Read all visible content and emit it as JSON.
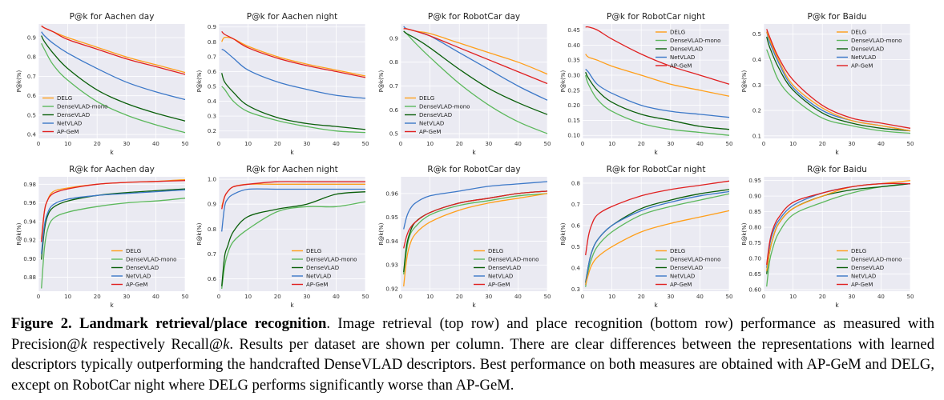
{
  "colors": {
    "DELG": "#ff9f1a",
    "DenseVLAD-mono": "#5cb85c",
    "DenseVLAD": "#0a5f0a",
    "NetVLAD": "#3c78c8",
    "AP-GeM": "#e02020",
    "panel_bg": "#eaeaf2",
    "grid": "#ffffff"
  },
  "caption": {
    "label": "Figure 2.",
    "title": "Landmark retrieval/place recognition",
    "text1": ". Image retrieval (top row) and place recognition (bottom row) performance as measured with Precision@",
    "k1": "k",
    "text2": " respectively Recall@",
    "k2": "k",
    "text3": ". Results per dataset are shown per column. There are clear differences between the representations with learned descriptors typically outperforming the handcrafted DenseVLAD descriptors. Best performance on both measures are obtained with AP-GeM and DELG, except on RobotCar night where DELG performs significantly worse than AP-GeM."
  },
  "chart_data": [
    {
      "type": "line",
      "title": "P@k for Aachen day",
      "xlabel": "k",
      "ylabel": "P@k(%)",
      "xlim": [
        0,
        50
      ],
      "ylim": [
        0.38,
        0.97
      ],
      "xticks": [
        0,
        10,
        20,
        30,
        40,
        50
      ],
      "yticks": [
        0.4,
        0.5,
        0.6,
        0.7,
        0.8,
        0.9
      ],
      "legend": "lower-left",
      "x": [
        1,
        2,
        5,
        10,
        20,
        30,
        40,
        50
      ],
      "series": [
        {
          "name": "DELG",
          "values": [
            0.96,
            0.95,
            0.93,
            0.9,
            0.85,
            0.8,
            0.76,
            0.72
          ]
        },
        {
          "name": "DenseVLAD-mono",
          "values": [
            0.87,
            0.84,
            0.76,
            0.68,
            0.57,
            0.5,
            0.45,
            0.41
          ]
        },
        {
          "name": "DenseVLAD",
          "values": [
            0.91,
            0.88,
            0.82,
            0.74,
            0.63,
            0.56,
            0.51,
            0.47
          ]
        },
        {
          "name": "NetVLAD",
          "values": [
            0.93,
            0.91,
            0.87,
            0.82,
            0.74,
            0.67,
            0.62,
            0.58
          ]
        },
        {
          "name": "AP-GeM",
          "values": [
            0.96,
            0.95,
            0.93,
            0.89,
            0.84,
            0.79,
            0.75,
            0.71
          ]
        }
      ]
    },
    {
      "type": "line",
      "title": "P@k for Aachen night",
      "xlabel": "k",
      "ylabel": "P@k(%)",
      "xlim": [
        0,
        50
      ],
      "ylim": [
        0.15,
        0.92
      ],
      "xticks": [
        0,
        10,
        20,
        30,
        40,
        50
      ],
      "yticks": [
        0.2,
        0.3,
        0.4,
        0.5,
        0.6,
        0.7,
        0.8,
        0.9
      ],
      "legend": "none",
      "x": [
        1,
        2,
        5,
        10,
        20,
        30,
        40,
        50
      ],
      "series": [
        {
          "name": "DELG",
          "values": [
            0.8,
            0.83,
            0.82,
            0.77,
            0.7,
            0.65,
            0.61,
            0.57
          ]
        },
        {
          "name": "DenseVLAD-mono",
          "values": [
            0.5,
            0.48,
            0.4,
            0.33,
            0.27,
            0.23,
            0.2,
            0.19
          ]
        },
        {
          "name": "DenseVLAD",
          "values": [
            0.59,
            0.53,
            0.46,
            0.37,
            0.29,
            0.25,
            0.23,
            0.21
          ]
        },
        {
          "name": "NetVLAD",
          "values": [
            0.75,
            0.74,
            0.69,
            0.61,
            0.53,
            0.48,
            0.44,
            0.42
          ]
        },
        {
          "name": "AP-GeM",
          "values": [
            0.87,
            0.85,
            0.82,
            0.76,
            0.69,
            0.64,
            0.6,
            0.56
          ]
        }
      ]
    },
    {
      "type": "line",
      "title": "P@k for RobotCar day",
      "xlabel": "k",
      "ylabel": "P@k(%)",
      "xlim": [
        0,
        50
      ],
      "ylim": [
        0.48,
        0.96
      ],
      "xticks": [
        0,
        10,
        20,
        30,
        40,
        50
      ],
      "yticks": [
        0.5,
        0.6,
        0.7,
        0.8,
        0.9
      ],
      "legend": "lower-left",
      "x": [
        1,
        2,
        5,
        10,
        20,
        30,
        40,
        50
      ],
      "series": [
        {
          "name": "DELG",
          "values": [
            0.94,
            0.94,
            0.93,
            0.92,
            0.88,
            0.84,
            0.8,
            0.75
          ]
        },
        {
          "name": "DenseVLAD-mono",
          "values": [
            0.93,
            0.92,
            0.88,
            0.82,
            0.71,
            0.62,
            0.55,
            0.5
          ]
        },
        {
          "name": "DenseVLAD",
          "values": [
            0.93,
            0.92,
            0.9,
            0.86,
            0.77,
            0.69,
            0.63,
            0.58
          ]
        },
        {
          "name": "NetVLAD",
          "values": [
            0.95,
            0.94,
            0.93,
            0.91,
            0.84,
            0.77,
            0.7,
            0.64
          ]
        },
        {
          "name": "AP-GeM",
          "values": [
            0.94,
            0.94,
            0.93,
            0.91,
            0.86,
            0.81,
            0.76,
            0.71
          ]
        }
      ]
    },
    {
      "type": "line",
      "title": "P@k for RobotCar night",
      "xlabel": "k",
      "ylabel": "P@k(%)",
      "xlim": [
        0,
        50
      ],
      "ylim": [
        0.09,
        0.47
      ],
      "xticks": [
        0,
        10,
        20,
        30,
        40,
        50
      ],
      "yticks": [
        0.1,
        0.15,
        0.2,
        0.25,
        0.3,
        0.35,
        0.4,
        0.45
      ],
      "legend": "upper-right",
      "x": [
        1,
        2,
        5,
        10,
        20,
        30,
        40,
        50
      ],
      "series": [
        {
          "name": "DELG",
          "values": [
            0.37,
            0.36,
            0.35,
            0.33,
            0.3,
            0.27,
            0.25,
            0.23
          ]
        },
        {
          "name": "DenseVLAD-mono",
          "values": [
            0.3,
            0.27,
            0.22,
            0.18,
            0.14,
            0.12,
            0.11,
            0.1
          ]
        },
        {
          "name": "DenseVLAD",
          "values": [
            0.31,
            0.29,
            0.25,
            0.21,
            0.17,
            0.15,
            0.13,
            0.12
          ]
        },
        {
          "name": "NetVLAD",
          "values": [
            0.32,
            0.31,
            0.27,
            0.24,
            0.2,
            0.18,
            0.17,
            0.16
          ]
        },
        {
          "name": "AP-GeM",
          "values": [
            0.46,
            0.46,
            0.45,
            0.42,
            0.37,
            0.33,
            0.3,
            0.27
          ]
        }
      ]
    },
    {
      "type": "line",
      "title": "P@k for Baidu",
      "xlabel": "k",
      "ylabel": "P@k(%)",
      "xlim": [
        0,
        50
      ],
      "ylim": [
        0.09,
        0.54
      ],
      "xticks": [
        0,
        10,
        20,
        30,
        40,
        50
      ],
      "yticks": [
        0.1,
        0.2,
        0.3,
        0.4,
        0.5
      ],
      "legend": "upper-right",
      "x": [
        1,
        2,
        5,
        10,
        20,
        30,
        40,
        50
      ],
      "series": [
        {
          "name": "DELG",
          "values": [
            0.51,
            0.48,
            0.4,
            0.3,
            0.21,
            0.16,
            0.14,
            0.12
          ]
        },
        {
          "name": "DenseVLAD-mono",
          "values": [
            0.44,
            0.41,
            0.32,
            0.25,
            0.17,
            0.14,
            0.12,
            0.11
          ]
        },
        {
          "name": "DenseVLAD",
          "values": [
            0.49,
            0.45,
            0.37,
            0.28,
            0.19,
            0.15,
            0.13,
            0.12
          ]
        },
        {
          "name": "NetVLAD",
          "values": [
            0.51,
            0.47,
            0.39,
            0.29,
            0.2,
            0.16,
            0.14,
            0.12
          ]
        },
        {
          "name": "AP-GeM",
          "values": [
            0.52,
            0.49,
            0.41,
            0.32,
            0.22,
            0.17,
            0.15,
            0.13
          ]
        }
      ]
    },
    {
      "type": "line",
      "title": "R@k for Aachen day",
      "xlabel": "k",
      "ylabel": "R@k(%)",
      "xlim": [
        0,
        50
      ],
      "ylim": [
        0.865,
        0.988
      ],
      "xticks": [
        0,
        10,
        20,
        30,
        40,
        50
      ],
      "yticks": [
        0.88,
        0.9,
        0.92,
        0.94,
        0.96,
        0.98
      ],
      "legend": "lower-right",
      "x": [
        1,
        2,
        3,
        5,
        10,
        20,
        30,
        40,
        50
      ],
      "series": [
        {
          "name": "DELG",
          "values": [
            0.921,
            0.95,
            0.962,
            0.972,
            0.976,
            0.98,
            0.982,
            0.983,
            0.985
          ]
        },
        {
          "name": "DenseVLAD-mono",
          "values": [
            0.868,
            0.91,
            0.93,
            0.943,
            0.95,
            0.956,
            0.96,
            0.962,
            0.965
          ]
        },
        {
          "name": "DenseVLAD",
          "values": [
            0.899,
            0.93,
            0.945,
            0.955,
            0.962,
            0.968,
            0.971,
            0.973,
            0.975
          ]
        },
        {
          "name": "NetVLAD",
          "values": [
            0.905,
            0.935,
            0.948,
            0.958,
            0.964,
            0.968,
            0.97,
            0.972,
            0.974
          ]
        },
        {
          "name": "AP-GeM",
          "values": [
            0.918,
            0.95,
            0.962,
            0.97,
            0.975,
            0.98,
            0.982,
            0.983,
            0.984
          ]
        }
      ]
    },
    {
      "type": "line",
      "title": "R@k for Aachen night",
      "xlabel": "k",
      "ylabel": "R@k(%)",
      "xlim": [
        0,
        50
      ],
      "ylim": [
        0.55,
        1.01
      ],
      "xticks": [
        0,
        10,
        20,
        30,
        40,
        50
      ],
      "yticks": [
        0.6,
        0.7,
        0.8,
        0.9,
        1.0
      ],
      "legend": "lower-right",
      "x": [
        1,
        2,
        3,
        5,
        10,
        20,
        30,
        40,
        50
      ],
      "series": [
        {
          "name": "DELG",
          "values": [
            0.89,
            0.93,
            0.95,
            0.97,
            0.98,
            0.98,
            0.98,
            0.98,
            0.98
          ]
        },
        {
          "name": "DenseVLAD-mono",
          "values": [
            0.56,
            0.65,
            0.7,
            0.75,
            0.8,
            0.87,
            0.89,
            0.89,
            0.91
          ]
        },
        {
          "name": "DenseVLAD",
          "values": [
            0.57,
            0.69,
            0.73,
            0.79,
            0.85,
            0.88,
            0.9,
            0.94,
            0.95
          ]
        },
        {
          "name": "NetVLAD",
          "values": [
            0.79,
            0.89,
            0.92,
            0.94,
            0.96,
            0.96,
            0.96,
            0.96,
            0.96
          ]
        },
        {
          "name": "AP-GeM",
          "values": [
            0.88,
            0.93,
            0.95,
            0.97,
            0.98,
            0.99,
            0.99,
            0.99,
            0.99
          ]
        }
      ]
    },
    {
      "type": "line",
      "title": "R@k for RobotCar day",
      "xlabel": "k",
      "ylabel": "R@k(%)",
      "xlim": [
        0,
        50
      ],
      "ylim": [
        0.919,
        0.967
      ],
      "xticks": [
        0,
        10,
        20,
        30,
        40,
        50
      ],
      "yticks": [
        0.92,
        0.93,
        0.94,
        0.95,
        0.96
      ],
      "legend": "lower-right",
      "x": [
        1,
        2,
        3,
        5,
        10,
        20,
        30,
        40,
        50
      ],
      "series": [
        {
          "name": "DELG",
          "values": [
            0.921,
            0.932,
            0.938,
            0.943,
            0.948,
            0.953,
            0.956,
            0.958,
            0.96
          ]
        },
        {
          "name": "DenseVLAD-mono",
          "values": [
            0.926,
            0.936,
            0.942,
            0.946,
            0.951,
            0.955,
            0.957,
            0.959,
            0.96
          ]
        },
        {
          "name": "DenseVLAD",
          "values": [
            0.927,
            0.938,
            0.943,
            0.948,
            0.952,
            0.956,
            0.958,
            0.96,
            0.961
          ]
        },
        {
          "name": "NetVLAD",
          "values": [
            0.945,
            0.95,
            0.953,
            0.956,
            0.959,
            0.961,
            0.963,
            0.964,
            0.965
          ]
        },
        {
          "name": "AP-GeM",
          "values": [
            0.937,
            0.942,
            0.945,
            0.948,
            0.952,
            0.956,
            0.958,
            0.96,
            0.961
          ]
        }
      ]
    },
    {
      "type": "line",
      "title": "R@k for RobotCar night",
      "xlabel": "k",
      "ylabel": "R@k(%)",
      "xlim": [
        0,
        50
      ],
      "ylim": [
        0.29,
        0.83
      ],
      "xticks": [
        0,
        10,
        20,
        30,
        40,
        50
      ],
      "yticks": [
        0.3,
        0.4,
        0.5,
        0.6,
        0.7,
        0.8
      ],
      "legend": "lower-right",
      "x": [
        1,
        2,
        3,
        5,
        10,
        20,
        30,
        40,
        50
      ],
      "series": [
        {
          "name": "DELG",
          "values": [
            0.32,
            0.37,
            0.41,
            0.45,
            0.5,
            0.57,
            0.61,
            0.64,
            0.67
          ]
        },
        {
          "name": "DenseVLAD-mono",
          "values": [
            0.31,
            0.39,
            0.44,
            0.5,
            0.57,
            0.65,
            0.69,
            0.72,
            0.75
          ]
        },
        {
          "name": "DenseVLAD",
          "values": [
            0.33,
            0.41,
            0.47,
            0.53,
            0.6,
            0.68,
            0.72,
            0.75,
            0.77
          ]
        },
        {
          "name": "NetVLAD",
          "values": [
            0.32,
            0.41,
            0.47,
            0.53,
            0.6,
            0.67,
            0.71,
            0.74,
            0.76
          ]
        },
        {
          "name": "AP-GeM",
          "values": [
            0.46,
            0.55,
            0.6,
            0.65,
            0.69,
            0.74,
            0.77,
            0.79,
            0.81
          ]
        }
      ]
    },
    {
      "type": "line",
      "title": "R@k for Baidu",
      "xlabel": "k",
      "ylabel": "R@k(%)",
      "xlim": [
        0,
        50
      ],
      "ylim": [
        0.595,
        0.962
      ],
      "xticks": [
        0,
        10,
        20,
        30,
        40,
        50
      ],
      "yticks": [
        0.6,
        0.65,
        0.7,
        0.75,
        0.8,
        0.85,
        0.9,
        0.95
      ],
      "legend": "lower-right",
      "x": [
        1,
        2,
        3,
        5,
        10,
        20,
        30,
        40,
        50
      ],
      "series": [
        {
          "name": "DELG",
          "values": [
            0.66,
            0.72,
            0.76,
            0.81,
            0.86,
            0.9,
            0.93,
            0.94,
            0.95
          ]
        },
        {
          "name": "DenseVLAD-mono",
          "values": [
            0.61,
            0.69,
            0.73,
            0.78,
            0.84,
            0.88,
            0.91,
            0.93,
            0.94
          ]
        },
        {
          "name": "DenseVLAD",
          "values": [
            0.65,
            0.72,
            0.76,
            0.81,
            0.86,
            0.9,
            0.92,
            0.93,
            0.94
          ]
        },
        {
          "name": "NetVLAD",
          "values": [
            0.67,
            0.74,
            0.78,
            0.82,
            0.87,
            0.91,
            0.93,
            0.94,
            0.94
          ]
        },
        {
          "name": "AP-GeM",
          "values": [
            0.68,
            0.75,
            0.79,
            0.83,
            0.88,
            0.91,
            0.93,
            0.94,
            0.94
          ]
        }
      ]
    }
  ]
}
